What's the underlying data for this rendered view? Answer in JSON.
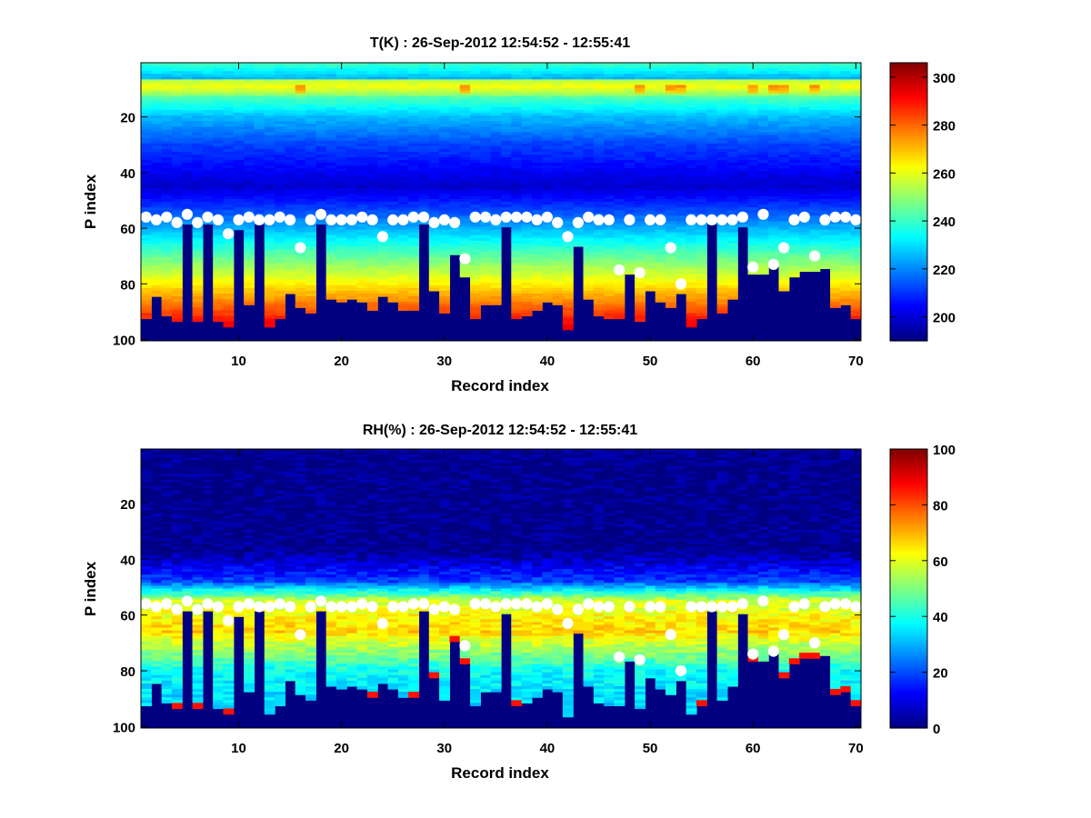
{
  "chart_data": [
    {
      "type": "heatmap",
      "title": "T(K) : 26-Sep-2012 12:54:52 - 12:55:41",
      "xlabel": "Record index",
      "ylabel": "P index",
      "xlim": [
        0.5,
        70.5
      ],
      "ylim": [
        100.5,
        0.5
      ],
      "y_reversed": true,
      "x_ticks": [
        10,
        20,
        30,
        40,
        50,
        60,
        70
      ],
      "y_ticks": [
        20,
        40,
        60,
        80,
        100
      ],
      "colormap": "jet",
      "color_range": [
        190,
        306
      ],
      "colorbar_ticks": [
        200,
        220,
        240,
        260,
        280,
        300
      ],
      "fill_value": 190,
      "marker_color": "#ffffff"
    },
    {
      "type": "heatmap",
      "title": "RH(%) : 26-Sep-2012 12:54:52 - 12:55:41",
      "xlabel": "Record index",
      "ylabel": "P index",
      "xlim": [
        0.5,
        70.5
      ],
      "ylim": [
        100.5,
        0.5
      ],
      "y_reversed": true,
      "x_ticks": [
        10,
        20,
        30,
        40,
        50,
        60,
        70
      ],
      "y_ticks": [
        20,
        40,
        60,
        80,
        100
      ],
      "colormap": "jet",
      "color_range": [
        0,
        100
      ],
      "colorbar_ticks": [
        0,
        20,
        40,
        60,
        80,
        100
      ],
      "fill_value": 0,
      "marker_color": "#ffffff"
    }
  ],
  "records": {
    "x": [
      1,
      2,
      3,
      4,
      5,
      6,
      7,
      8,
      9,
      10,
      11,
      12,
      13,
      14,
      15,
      16,
      17,
      18,
      19,
      20,
      21,
      22,
      23,
      24,
      25,
      26,
      27,
      28,
      29,
      30,
      31,
      32,
      33,
      34,
      35,
      36,
      37,
      38,
      39,
      40,
      41,
      42,
      43,
      44,
      45,
      46,
      47,
      48,
      49,
      50,
      51,
      52,
      53,
      54,
      55,
      56,
      57,
      58,
      59,
      60,
      61,
      62,
      63,
      64,
      65,
      66,
      67,
      68,
      69,
      70
    ],
    "white_marker_p": [
      56,
      57,
      56,
      58,
      55,
      58,
      56,
      57,
      62,
      57,
      56,
      57,
      57,
      56,
      57,
      67,
      57,
      55,
      57,
      57,
      57,
      56,
      57,
      63,
      57,
      57,
      56,
      56,
      58,
      57,
      58,
      71,
      56,
      56,
      57,
      56,
      56,
      56,
      57,
      56,
      58,
      63,
      58,
      56,
      57,
      57,
      75,
      57,
      76,
      57,
      57,
      67,
      80,
      57,
      57,
      57,
      57,
      57,
      56,
      74,
      55,
      73,
      67,
      57,
      56,
      70,
      57,
      56,
      56,
      57
    ],
    "lowest_valid_p": [
      92,
      84,
      91,
      93,
      58,
      93,
      58,
      93,
      95,
      60,
      87,
      58,
      95,
      92,
      83,
      88,
      90,
      58,
      85,
      86,
      85,
      86,
      89,
      84,
      86,
      89,
      89,
      58,
      82,
      90,
      69,
      77,
      92,
      87,
      87,
      59,
      92,
      91,
      89,
      86,
      87,
      96,
      66,
      85,
      91,
      92,
      92,
      76,
      93,
      82,
      86,
      88,
      83,
      95,
      92,
      58,
      90,
      85,
      59,
      76,
      76,
      73,
      82,
      77,
      75,
      75,
      74,
      88,
      87,
      92
    ],
    "warm_cap_rows": [
      9,
      10,
      11
    ],
    "warm_cap_records": [
      16,
      32,
      49,
      52,
      53,
      60,
      62,
      63,
      66
    ]
  }
}
